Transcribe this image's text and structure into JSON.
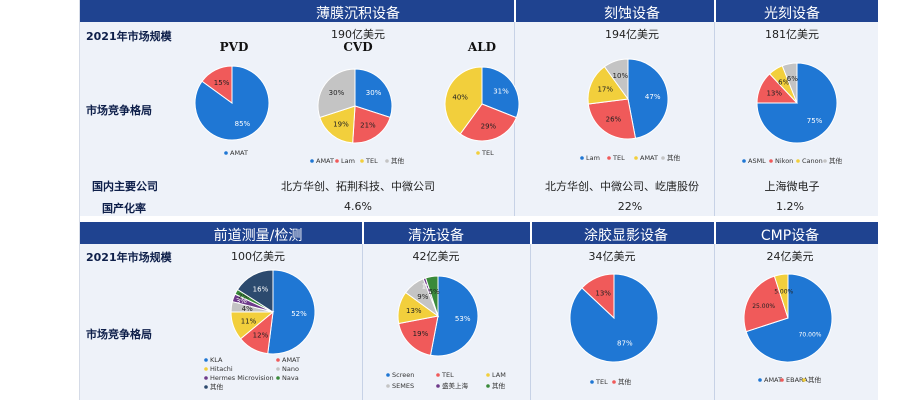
{
  "header_top": [
    {
      "title": "薄膜沉积设备",
      "cx": 358
    },
    {
      "title": "刻蚀设备",
      "cx": 632
    },
    {
      "title": "光刻设备",
      "cx": 792
    }
  ],
  "header_bottom": [
    {
      "title": "前道测量/检测",
      "cx": 258
    },
    {
      "title": "清洗设备",
      "cx": 436
    },
    {
      "title": "涂胶显影设备",
      "cx": 626
    },
    {
      "title": "CMP设备",
      "cx": 790
    }
  ],
  "row_labels": {
    "market_size": "2021年市场规模",
    "competition": "市场竞争格局",
    "domestic": "国内主要公司",
    "localization": "国产化率",
    "market_size_2": "2021年市场规模",
    "competition_2": "市场竞争格局"
  },
  "top_values": {
    "thin_film_size": "190亿美元",
    "etch_size": "194亿美元",
    "litho_size": "181亿美元",
    "thin_film_companies": "北方华创、拓荆科技、中微公司",
    "etch_companies": "北方华创、中微公司、屹唐股份",
    "litho_companies": "上海微电子",
    "thin_film_rate": "4.6%",
    "etch_rate": "22%",
    "litho_rate": "1.2%"
  },
  "bottom_values": {
    "metrology_size": "100亿美元",
    "cleaning_size": "42亿美元",
    "coating_size": "34亿美元",
    "cmp_size": "24亿美元"
  },
  "colors": {
    "header": "#1f4390",
    "panel": "#eef2f9",
    "blue": "#1f77d4",
    "red": "#f05a5a",
    "gray": "#c4c4c4",
    "yellow": "#f2cf3c",
    "darkblue": "#2c4a6e",
    "purple": "#6e3a8a",
    "green": "#3a8a3a",
    "orange": "#e58a2b"
  },
  "chart_data": [
    {
      "type": "pie",
      "title": "PVD",
      "slices": [
        {
          "label": "AMAT",
          "value": 85,
          "text": "85%",
          "color": "#1f77d4"
        },
        {
          "label": "",
          "value": 15,
          "text": "15%",
          "color": "#f05a5a"
        }
      ],
      "legend": [
        "AMAT"
      ]
    },
    {
      "type": "pie",
      "title": "CVD",
      "slices": [
        {
          "label": "AMAT",
          "value": 30,
          "text": "30%",
          "color": "#1f77d4"
        },
        {
          "label": "Lam",
          "value": 21,
          "text": "21%",
          "color": "#f05a5a"
        },
        {
          "label": "TEL",
          "value": 19,
          "text": "19%",
          "color": "#f2cf3c"
        },
        {
          "label": "其他",
          "value": 30,
          "text": "30%",
          "color": "#c4c4c4"
        }
      ],
      "legend": [
        "AMAT",
        "Lam",
        "TEL",
        "其他"
      ]
    },
    {
      "type": "pie",
      "title": "ALD",
      "slices": [
        {
          "label": "",
          "value": 31,
          "text": "31%",
          "color": "#1f77d4"
        },
        {
          "label": "",
          "value": 29,
          "text": "29%",
          "color": "#f05a5a"
        },
        {
          "label": "TEL",
          "value": 40,
          "text": "40%",
          "color": "#f2cf3c"
        }
      ],
      "legend": [
        "TEL"
      ]
    },
    {
      "type": "pie",
      "title": "",
      "slices": [
        {
          "label": "Lam",
          "value": 47,
          "text": "47%",
          "color": "#1f77d4"
        },
        {
          "label": "TEL",
          "value": 26,
          "text": "26%",
          "color": "#f05a5a"
        },
        {
          "label": "AMAT",
          "value": 17,
          "text": "17%",
          "color": "#f2cf3c"
        },
        {
          "label": "其他",
          "value": 10,
          "text": "10%",
          "color": "#c4c4c4"
        }
      ],
      "legend": [
        "Lam",
        "TEL",
        "AMAT",
        "其他"
      ]
    },
    {
      "type": "pie",
      "title": "",
      "slices": [
        {
          "label": "ASML",
          "value": 75,
          "text": "75%",
          "color": "#1f77d4"
        },
        {
          "label": "Nikon",
          "value": 13,
          "text": "13%",
          "color": "#f05a5a"
        },
        {
          "label": "Canon",
          "value": 6,
          "text": "6%",
          "color": "#f2cf3c"
        },
        {
          "label": "其他",
          "value": 6,
          "text": "6%",
          "color": "#c4c4c4"
        }
      ],
      "legend": [
        "ASML",
        "Nikon",
        "Canon",
        "其他"
      ]
    },
    {
      "type": "pie",
      "title": "",
      "slices": [
        {
          "label": "KLA",
          "value": 52,
          "text": "52%",
          "color": "#1f77d4"
        },
        {
          "label": "AMAT",
          "value": 12,
          "text": "12%",
          "color": "#f05a5a"
        },
        {
          "label": "Hitachi",
          "value": 11,
          "text": "11%",
          "color": "#f2cf3c"
        },
        {
          "label": "Nano",
          "value": 4,
          "text": "4%",
          "color": "#c4c4c4"
        },
        {
          "label": "Hermes Microvision",
          "value": 3,
          "text": "3%",
          "color": "#6e3a8a"
        },
        {
          "label": "Nava",
          "value": 2,
          "text": "2%",
          "color": "#3a8a3a"
        },
        {
          "label": "其他",
          "value": 16,
          "text": "16%",
          "color": "#2c4a6e"
        }
      ],
      "legend": [
        "KLA",
        "AMAT",
        "Hitachi",
        "Nano",
        "Hermes Microvision",
        "Nava",
        "其他"
      ]
    },
    {
      "type": "pie",
      "title": "",
      "slices": [
        {
          "label": "Screen",
          "value": 53,
          "text": "53%",
          "color": "#1f77d4"
        },
        {
          "label": "TEL",
          "value": 19,
          "text": "19%",
          "color": "#f05a5a"
        },
        {
          "label": "LAM",
          "value": 13,
          "text": "13%",
          "color": "#f2cf3c"
        },
        {
          "label": "SEMES",
          "value": 9,
          "text": "9%",
          "color": "#c4c4c4"
        },
        {
          "label": "盛美上海",
          "value": 1,
          "text": "1%",
          "color": "#6e3a8a"
        },
        {
          "label": "其他",
          "value": 5,
          "text": "5%",
          "color": "#3a8a3a"
        }
      ],
      "legend": [
        "Screen",
        "TEL",
        "LAM",
        "SEMES",
        "盛美上海",
        "其他"
      ]
    },
    {
      "type": "pie",
      "title": "",
      "slices": [
        {
          "label": "TEL",
          "value": 87,
          "text": "87%",
          "color": "#1f77d4"
        },
        {
          "label": "其他",
          "value": 13,
          "text": "13%",
          "color": "#f05a5a"
        }
      ],
      "legend": [
        "TEL",
        "其他"
      ]
    },
    {
      "type": "pie",
      "title": "",
      "slices": [
        {
          "label": "AMAT",
          "value": 70.0,
          "text": "70.00%",
          "color": "#1f77d4"
        },
        {
          "label": "EBARA",
          "value": 25.0,
          "text": "25.00%",
          "color": "#f05a5a"
        },
        {
          "label": "其他",
          "value": 5.0,
          "text": "5.00%",
          "color": "#f2cf3c"
        }
      ],
      "legend": [
        "AMAT",
        "EBARA",
        "其他"
      ]
    }
  ]
}
